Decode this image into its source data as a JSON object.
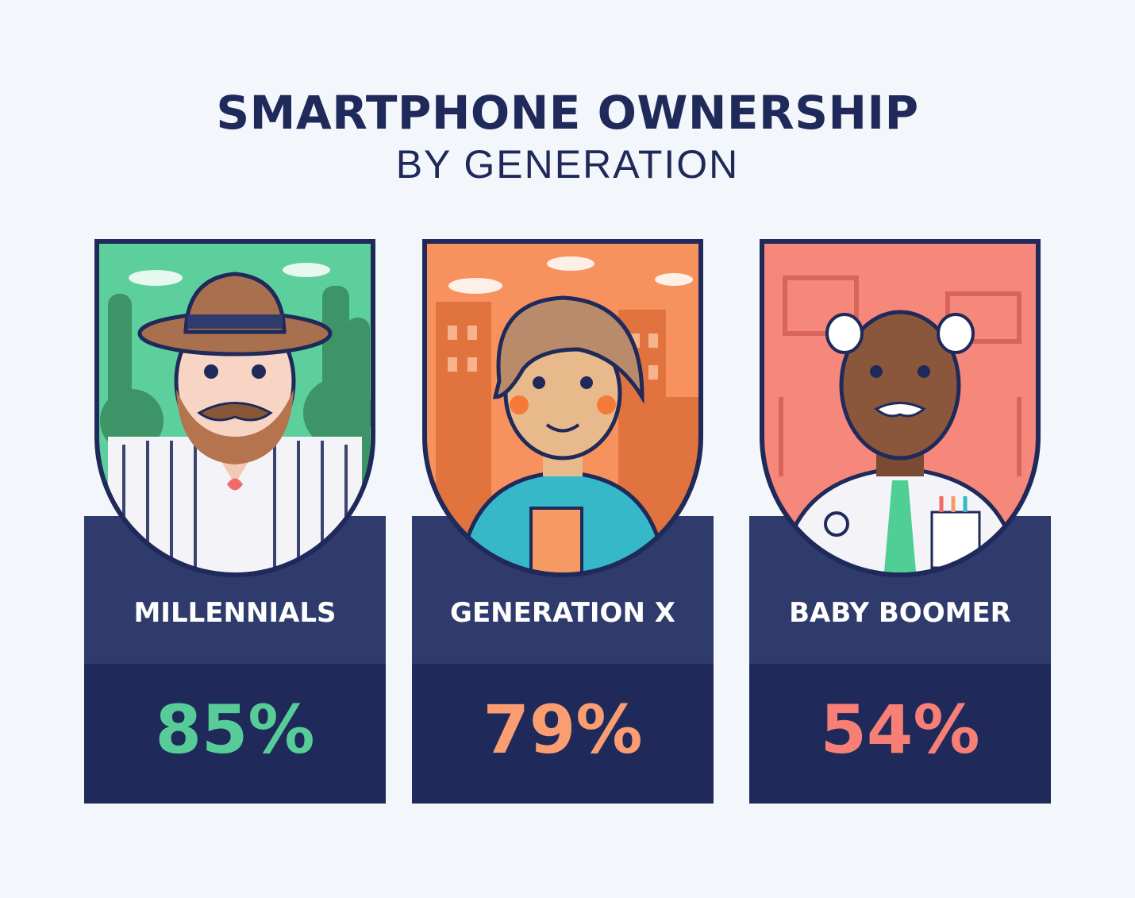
{
  "header": {
    "title": "SMARTPHONE OWNERSHIP",
    "subtitle": "BY GENERATION"
  },
  "generations": [
    {
      "label": "MILLENNIALS",
      "value": "85%",
      "value_color": "#58cc98",
      "bg_color": "#5ccf9d"
    },
    {
      "label": "GENERATION X",
      "value": "79%",
      "value_color": "#fa9e72",
      "bg_color": "#f7925f"
    },
    {
      "label": "BABY BOOMER",
      "value": "54%",
      "value_color": "#f77f76",
      "bg_color": "#f5877b"
    }
  ],
  "colors": {
    "navy": "#1f2a5a",
    "label_band": "#2f3b6c",
    "background": "#f3f6fa"
  }
}
